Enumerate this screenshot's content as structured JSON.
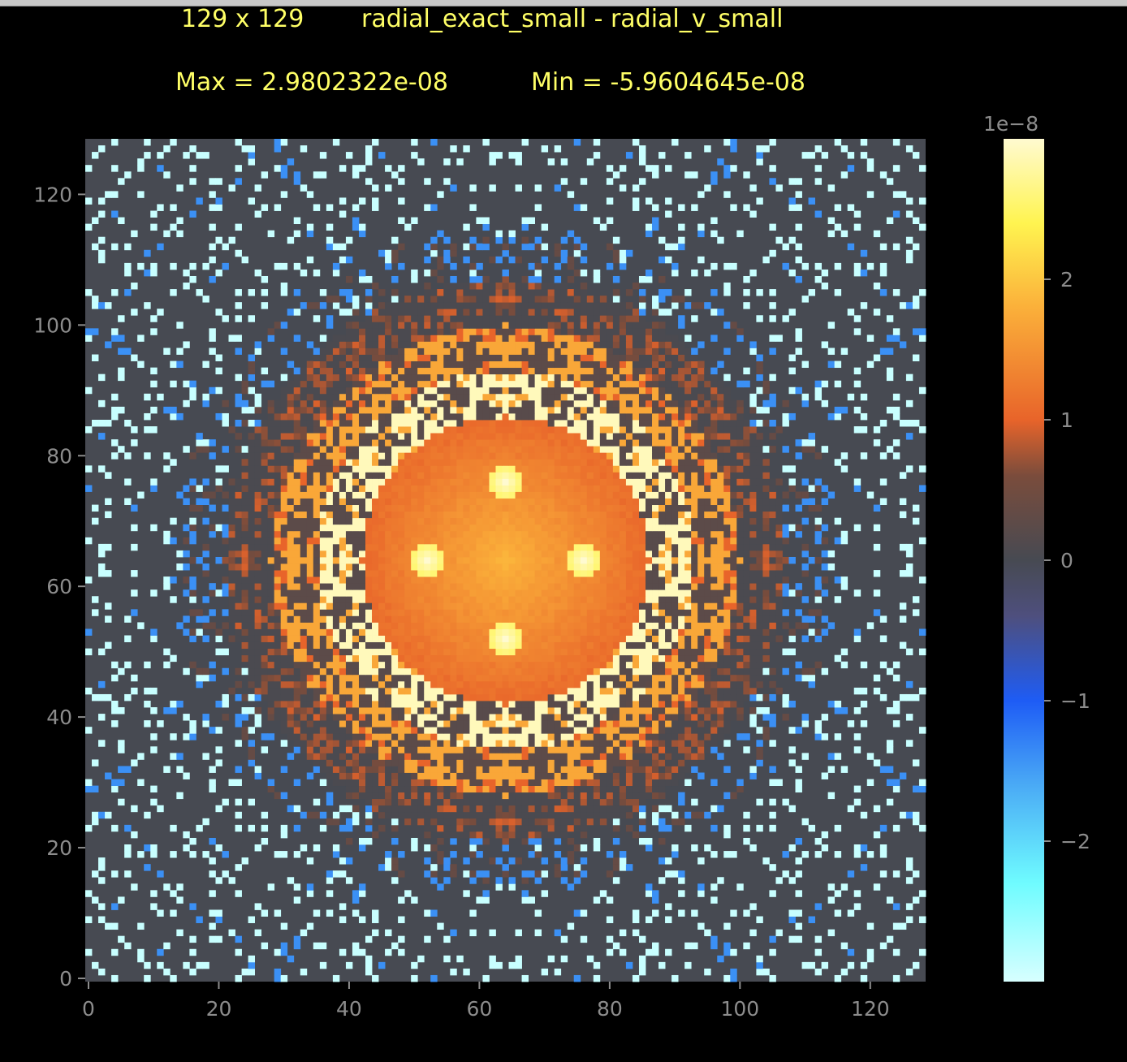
{
  "window": {
    "title_left": "129 x 129",
    "title_right": "radial_exact_small - radial_v_small",
    "max_label": "Max = 2.9802322e-08",
    "min_label": "Min = -5.9604645e-08"
  },
  "colors": {
    "background": "#000000",
    "neutral_cell": "#474a52",
    "axis_text": "#8c8c8c",
    "title_text": "#ffff66"
  },
  "chart_data": {
    "type": "heatmap",
    "grid_size": [
      129,
      129
    ],
    "title": "radial_exact_small - radial_v_small",
    "max": 2.9802322e-08,
    "min": -5.9604645e-08,
    "xlim": [
      0,
      128
    ],
    "ylim": [
      0,
      128
    ],
    "x_ticks": [
      0,
      20,
      40,
      60,
      80,
      100,
      120
    ],
    "y_ticks": [
      0,
      20,
      40,
      60,
      80,
      100,
      120
    ],
    "x_tick_labels": [
      "0",
      "20",
      "40",
      "60",
      "80",
      "100",
      "120"
    ],
    "y_tick_labels": [
      "0",
      "20",
      "40",
      "60",
      "80",
      "100",
      "120"
    ],
    "colorbar": {
      "scale_label": "1e−8",
      "range": [
        -3.0,
        3.0
      ],
      "ticks": [
        2,
        1,
        0,
        -1,
        -2
      ],
      "tick_labels": [
        "2",
        "1",
        "0",
        "−1",
        "−2"
      ],
      "stops": [
        {
          "value": -3.0,
          "color": "#d7ffff"
        },
        {
          "value": -2.3,
          "color": "#6ffcff"
        },
        {
          "value": -1.6,
          "color": "#4aaaf5"
        },
        {
          "value": -1.0,
          "color": "#1e5cf5"
        },
        {
          "value": -0.4,
          "color": "#4e4f7e"
        },
        {
          "value": 0.0,
          "color": "#474a52"
        },
        {
          "value": 0.6,
          "color": "#7a4c3c"
        },
        {
          "value": 1.0,
          "color": "#e8642a"
        },
        {
          "value": 1.8,
          "color": "#fbb03a"
        },
        {
          "value": 2.4,
          "color": "#fff450"
        },
        {
          "value": 3.0,
          "color": "#fffad0"
        }
      ]
    },
    "pattern": {
      "center": [
        64,
        64
      ],
      "core_radius": 22,
      "core_values_range": [
        1.0,
        1.8
      ],
      "hot_spots": [
        [
          52,
          64
        ],
        [
          76,
          64
        ],
        [
          64,
          52
        ],
        [
          64,
          76
        ]
      ],
      "ring1_radius": 26,
      "ring1_value": 2.9,
      "ring2_radius": 33,
      "ring2_value": 1.7,
      "ring3_radius": 40,
      "ring3_value": 0.5,
      "ring_outer_neg_radius": 47,
      "ring_outer_neg_value": -1.4,
      "sparse_outer_value": -2.9,
      "background_value": 0.0
    }
  }
}
